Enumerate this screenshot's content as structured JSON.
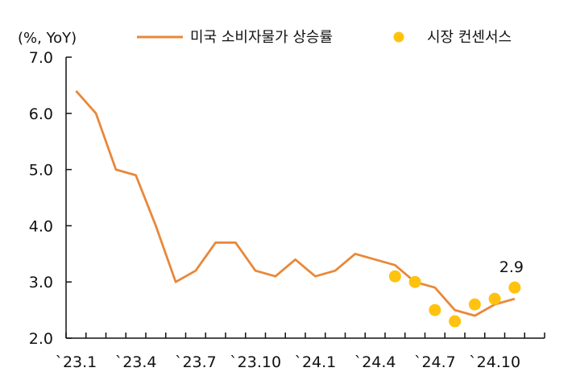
{
  "chart_data": {
    "type": "line",
    "unit_label": "(%, YoY)",
    "x_tick_labels": [
      "`23.1",
      "`23.4",
      "`23.7",
      "`23.10",
      "`24.1",
      "`24.4",
      "`24.7",
      "`24.10"
    ],
    "ylim": [
      2.0,
      7.0
    ],
    "y_ticks": [
      "2.0",
      "3.0",
      "4.0",
      "5.0",
      "6.0",
      "7.0"
    ],
    "grid": false,
    "legend_position": "top",
    "series": [
      {
        "name": "미국 소비자물가 상승률",
        "kind": "line",
        "color": "#E8883A",
        "x": [
          "2023-01",
          "2023-02",
          "2023-03",
          "2023-04",
          "2023-05",
          "2023-06",
          "2023-07",
          "2023-08",
          "2023-09",
          "2023-10",
          "2023-11",
          "2023-12",
          "2024-01",
          "2024-02",
          "2024-03",
          "2024-04",
          "2024-05",
          "2024-06",
          "2024-07",
          "2024-08",
          "2024-09",
          "2024-10",
          "2024-11"
        ],
        "values": [
          6.4,
          6.0,
          5.0,
          4.9,
          4.0,
          3.0,
          3.2,
          3.7,
          3.7,
          3.2,
          3.1,
          3.4,
          3.1,
          3.2,
          3.5,
          3.4,
          3.3,
          3.0,
          2.9,
          2.5,
          2.4,
          2.6,
          2.7
        ]
      },
      {
        "name": "시장 컨센서스",
        "kind": "scatter",
        "color": "#FFC20E",
        "x": [
          "2024-05",
          "2024-06",
          "2024-07",
          "2024-08",
          "2024-09",
          "2024-10",
          "2024-11"
        ],
        "values": [
          3.1,
          3.0,
          2.5,
          2.3,
          2.6,
          2.7,
          2.9
        ]
      }
    ],
    "annotation": {
      "text": "2.9",
      "x": "2024-11",
      "y": 2.9
    }
  }
}
